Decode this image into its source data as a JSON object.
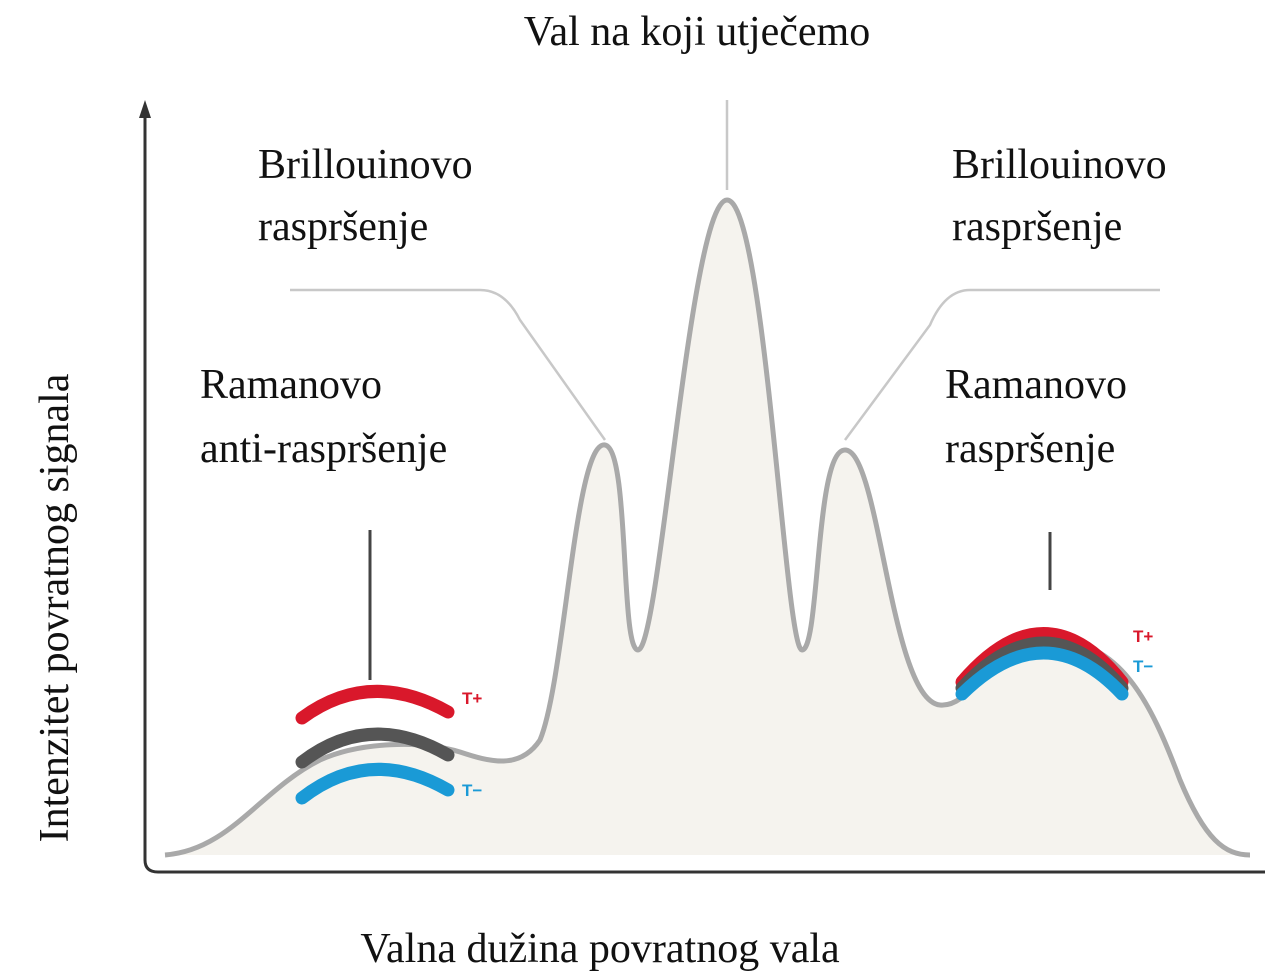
{
  "title": "Val na koji utječemo",
  "x_axis_label": "Valna dužina povratnog vala",
  "y_axis_label": "Intenzitet povratnog signala",
  "annotations": [
    {
      "lines": [
        "Brillouinovo",
        "raspršenje"
      ]
    },
    {
      "lines": [
        "Brillouinovo",
        "raspršenje"
      ]
    },
    {
      "lines": [
        "Ramanovo",
        "anti-raspršenje"
      ]
    },
    {
      "lines": [
        "Ramanovo",
        "raspršenje"
      ]
    }
  ],
  "temperature_labels": [
    "T+",
    "T−",
    "T+",
    "T−"
  ]
}
